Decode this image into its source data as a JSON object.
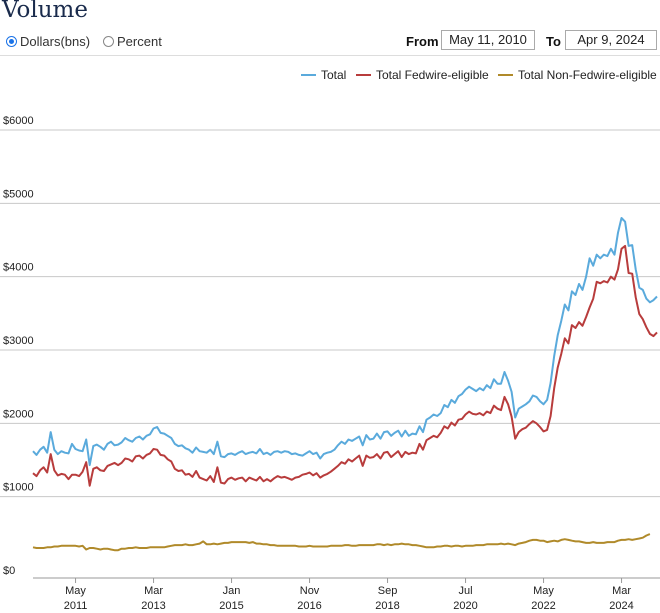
{
  "title": "Volume",
  "units_options": [
    {
      "label": "Dollars(bns)",
      "selected": true
    },
    {
      "label": "Percent",
      "selected": false
    }
  ],
  "date_range": {
    "from_label": "From",
    "from_value": "May 11, 2010",
    "to_label": "To",
    "to_value": "Apr 9, 2024"
  },
  "chart_data": {
    "type": "line",
    "x_start": "2010-05",
    "x_step": "monthly",
    "x_ticks": [
      {
        "month": "May",
        "year": "2011",
        "date": "2011-05"
      },
      {
        "month": "Mar",
        "year": "2013",
        "date": "2013-03"
      },
      {
        "month": "Jan",
        "year": "2015",
        "date": "2015-01"
      },
      {
        "month": "Nov",
        "year": "2016",
        "date": "2016-11"
      },
      {
        "month": "Sep",
        "year": "2018",
        "date": "2018-09"
      },
      {
        "month": "Jul",
        "year": "2020",
        "date": "2020-07"
      },
      {
        "month": "May",
        "year": "2022",
        "date": "2022-05"
      },
      {
        "month": "Mar",
        "year": "2024",
        "date": "2024-03"
      }
    ],
    "y_ticks": [
      "$0",
      "$1000",
      "$2000",
      "$3000",
      "$4000",
      "$5000",
      "$6000"
    ],
    "ylim": [
      0,
      6000
    ],
    "grid": true,
    "legend_position": "top-right",
    "series": [
      {
        "name": "Total",
        "color": "#5aaadc",
        "values": [
          1620,
          1570,
          1640,
          1680,
          1600,
          1880,
          1640,
          1580,
          1620,
          1600,
          1590,
          1720,
          1650,
          1630,
          1620,
          1780,
          1430,
          1690,
          1710,
          1680,
          1640,
          1720,
          1750,
          1700,
          1710,
          1740,
          1800,
          1770,
          1750,
          1800,
          1820,
          1780,
          1830,
          1850,
          1930,
          1950,
          1870,
          1860,
          1830,
          1800,
          1720,
          1690,
          1700,
          1660,
          1640,
          1600,
          1670,
          1620,
          1610,
          1600,
          1640,
          1580,
          1750,
          1550,
          1540,
          1580,
          1590,
          1570,
          1600,
          1620,
          1580,
          1600,
          1610,
          1590,
          1650,
          1580,
          1600,
          1570,
          1610,
          1620,
          1600,
          1620,
          1610,
          1580,
          1590,
          1570,
          1560,
          1590,
          1620,
          1580,
          1600,
          1520,
          1580,
          1600,
          1610,
          1640,
          1700,
          1750,
          1720,
          1780,
          1760,
          1790,
          1820,
          1700,
          1840,
          1780,
          1790,
          1860,
          1790,
          1880,
          1890,
          1830,
          1870,
          1900,
          1820,
          1900,
          1830,
          1860,
          1850,
          1960,
          1880,
          2050,
          2080,
          2120,
          2100,
          2140,
          2250,
          2220,
          2320,
          2280,
          2370,
          2400,
          2460,
          2500,
          2470,
          2440,
          2480,
          2450,
          2520,
          2480,
          2600,
          2540,
          2540,
          2700,
          2580,
          2430,
          2080,
          2200,
          2230,
          2260,
          2300,
          2380,
          2360,
          2300,
          2260,
          2320,
          2550,
          2920,
          3200,
          3400,
          3620,
          3540,
          3800,
          3750,
          3900,
          3820,
          4000,
          4250,
          4150,
          4300,
          4250,
          4300,
          4280,
          4380,
          4300,
          4600,
          4800,
          4750,
          4420,
          4430,
          4100,
          3850,
          3820,
          3700,
          3650,
          3680,
          3730
        ]
      },
      {
        "name": "Total Fedwire-eligible",
        "color": "#b83c3c",
        "values": [
          1320,
          1280,
          1360,
          1400,
          1330,
          1580,
          1360,
          1290,
          1310,
          1300,
          1240,
          1300,
          1300,
          1280,
          1340,
          1470,
          1150,
          1380,
          1400,
          1360,
          1350,
          1420,
          1440,
          1460,
          1430,
          1460,
          1520,
          1510,
          1480,
          1550,
          1560,
          1520,
          1570,
          1590,
          1650,
          1640,
          1570,
          1560,
          1510,
          1480,
          1380,
          1350,
          1360,
          1300,
          1310,
          1270,
          1350,
          1260,
          1240,
          1220,
          1280,
          1200,
          1400,
          1190,
          1180,
          1240,
          1260,
          1230,
          1250,
          1260,
          1210,
          1260,
          1240,
          1220,
          1270,
          1210,
          1240,
          1210,
          1250,
          1280,
          1260,
          1270,
          1250,
          1230,
          1260,
          1270,
          1300,
          1310,
          1330,
          1290,
          1320,
          1260,
          1290,
          1310,
          1340,
          1380,
          1420,
          1470,
          1450,
          1510,
          1480,
          1520,
          1560,
          1420,
          1560,
          1530,
          1540,
          1580,
          1520,
          1600,
          1610,
          1540,
          1580,
          1620,
          1540,
          1610,
          1580,
          1600,
          1590,
          1720,
          1640,
          1770,
          1800,
          1830,
          1810,
          1870,
          1960,
          1930,
          2010,
          1970,
          2050,
          2060,
          2120,
          2160,
          2130,
          2120,
          2140,
          2110,
          2160,
          2140,
          2240,
          2200,
          2180,
          2360,
          2260,
          2090,
          1790,
          1880,
          1920,
          1940,
          1990,
          2030,
          2000,
          1950,
          1890,
          1910,
          2100,
          2480,
          2760,
          2950,
          3160,
          3090,
          3340,
          3300,
          3380,
          3330,
          3450,
          3580,
          3700,
          3930,
          3910,
          3940,
          3920,
          4000,
          3960,
          4100,
          4380,
          4420,
          4050,
          4040,
          3720,
          3490,
          3420,
          3310,
          3220,
          3190,
          3240
        ]
      },
      {
        "name": "Total Non-Fedwire-eligible",
        "color": "#b08a2a",
        "values": [
          310,
          300,
          300,
          300,
          310,
          310,
          320,
          320,
          330,
          330,
          330,
          330,
          330,
          320,
          330,
          280,
          300,
          300,
          290,
          280,
          290,
          290,
          280,
          270,
          270,
          290,
          290,
          300,
          300,
          310,
          300,
          300,
          300,
          310,
          310,
          310,
          310,
          310,
          320,
          330,
          340,
          340,
          340,
          350,
          340,
          340,
          350,
          360,
          390,
          350,
          350,
          360,
          350,
          360,
          370,
          370,
          380,
          380,
          380,
          380,
          380,
          370,
          380,
          360,
          360,
          350,
          350,
          340,
          340,
          330,
          330,
          330,
          330,
          330,
          330,
          320,
          320,
          320,
          330,
          320,
          320,
          320,
          320,
          320,
          330,
          330,
          330,
          330,
          340,
          340,
          330,
          330,
          340,
          340,
          340,
          340,
          340,
          350,
          350,
          340,
          350,
          340,
          350,
          350,
          360,
          350,
          350,
          340,
          340,
          330,
          320,
          310,
          310,
          310,
          320,
          320,
          330,
          330,
          320,
          330,
          330,
          320,
          330,
          330,
          330,
          340,
          340,
          340,
          350,
          350,
          350,
          350,
          360,
          350,
          360,
          350,
          340,
          360,
          370,
          380,
          400,
          410,
          410,
          400,
          400,
          380,
          390,
          400,
          390,
          410,
          420,
          410,
          400,
          390,
          390,
          380,
          370,
          370,
          380,
          370,
          370,
          370,
          380,
          380,
          380,
          400,
          410,
          410,
          420,
          410,
          420,
          430,
          440,
          470,
          490
        ]
      }
    ]
  }
}
